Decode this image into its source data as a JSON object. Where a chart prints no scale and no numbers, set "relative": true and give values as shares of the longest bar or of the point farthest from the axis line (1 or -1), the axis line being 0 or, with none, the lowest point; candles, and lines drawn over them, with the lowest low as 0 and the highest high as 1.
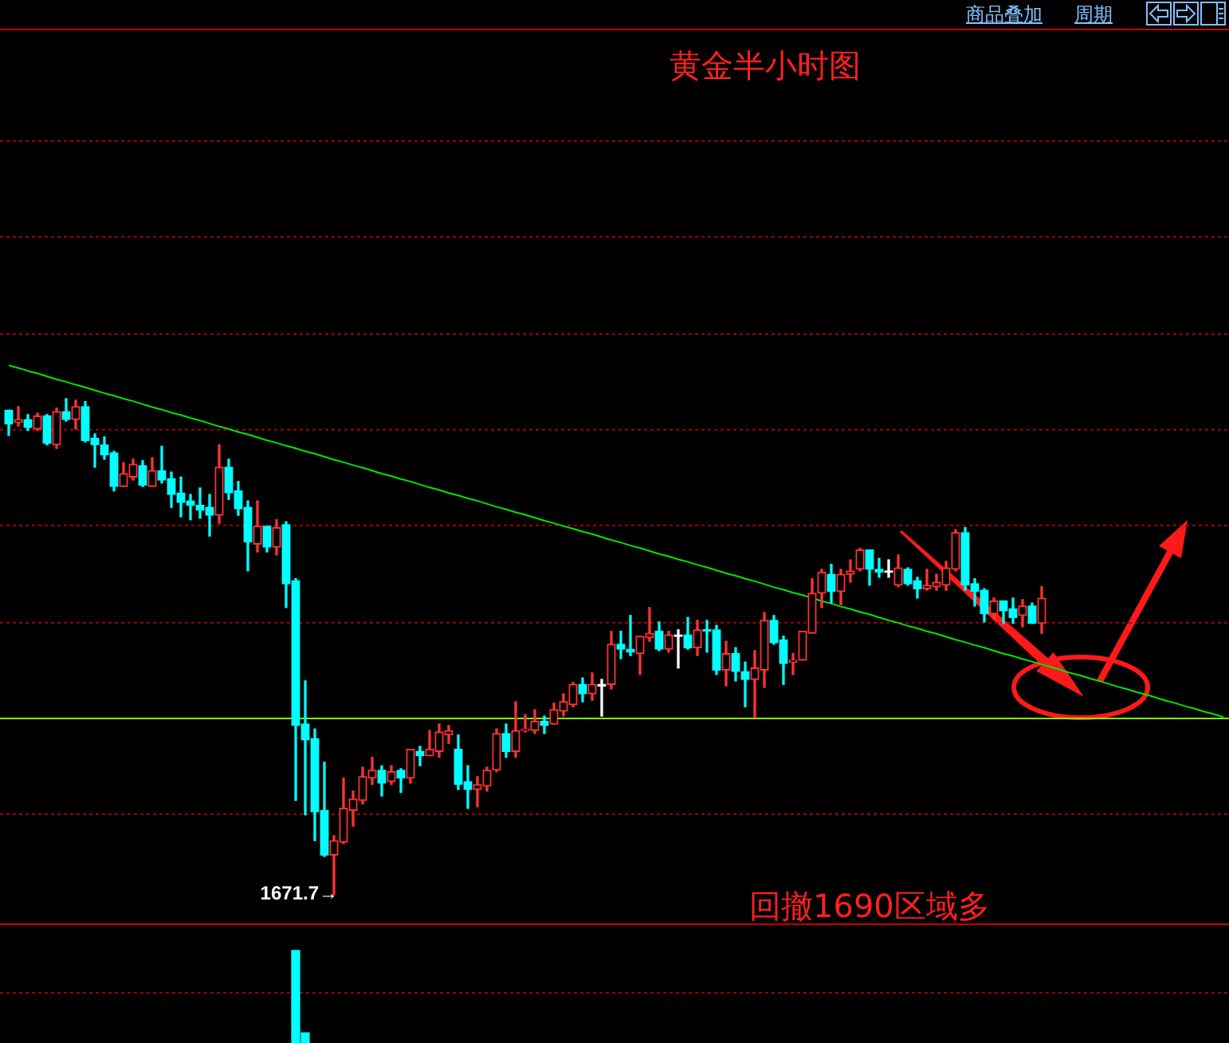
{
  "chart_data": [
    {
      "type": "candlestick",
      "title": "黄金半小时图",
      "relative": true,
      "tick_labels": false,
      "categories": [
        null,
        null,
        null,
        null,
        null,
        null,
        null,
        null,
        null,
        null,
        null,
        null,
        null,
        null,
        null,
        null,
        null,
        null,
        null,
        null,
        null,
        null,
        null,
        null,
        null,
        null,
        null,
        null,
        null,
        null,
        null,
        null,
        null,
        null,
        null,
        null,
        null,
        null,
        null,
        null,
        null,
        null,
        null,
        null,
        null,
        null,
        null,
        null,
        null,
        null,
        null,
        null,
        null,
        null,
        null,
        null,
        null,
        null,
        null,
        null,
        null,
        null,
        null,
        null,
        null,
        null,
        null,
        null,
        null,
        null,
        null,
        null,
        null,
        null,
        null,
        null,
        null,
        null,
        null,
        null,
        null,
        null,
        null,
        null,
        null,
        null,
        null,
        null,
        null,
        null,
        null,
        null,
        null,
        null,
        null,
        null,
        null,
        null,
        null,
        null,
        null,
        null,
        null,
        null,
        null,
        null,
        null,
        null,
        null,
        null,
        null,
        null,
        null,
        null,
        null,
        null,
        null,
        null,
        null,
        null,
        null,
        null,
        null,
        null,
        null,
        null,
        null,
        null
      ],
      "ohlc": [
        [
          0.977,
          0.977,
          0.926,
          0.949
        ],
        [
          0.952,
          0.984,
          0.945,
          0.958
        ],
        [
          0.958,
          0.968,
          0.936,
          0.942
        ],
        [
          0.939,
          0.971,
          0.936,
          0.965
        ],
        [
          0.965,
          0.968,
          0.907,
          0.91
        ],
        [
          0.907,
          0.981,
          0.9,
          0.974
        ],
        [
          0.974,
          1,
          0.955,
          0.958
        ],
        [
          0.958,
          0.997,
          0.939,
          0.984
        ],
        [
          0.984,
          0.994,
          0.913,
          0.916
        ],
        [
          0.92,
          0.929,
          0.862,
          0.907
        ],
        [
          0.907,
          0.923,
          0.878,
          0.887
        ],
        [
          0.891,
          0.894,
          0.814,
          0.823
        ],
        [
          0.823,
          0.871,
          0.823,
          0.849
        ],
        [
          0.842,
          0.878,
          0.836,
          0.868
        ],
        [
          0.865,
          0.875,
          0.823,
          0.826
        ],
        [
          0.823,
          0.881,
          0.823,
          0.855
        ],
        [
          0.855,
          0.904,
          0.83,
          0.836
        ],
        [
          0.839,
          0.852,
          0.781,
          0.807
        ],
        [
          0.81,
          0.842,
          0.762,
          0.791
        ],
        [
          0.794,
          0.807,
          0.756,
          0.785
        ],
        [
          0.785,
          0.82,
          0.759,
          0.775
        ],
        [
          0.781,
          0.807,
          0.723,
          0.765
        ],
        [
          0.765,
          0.907,
          0.749,
          0.862
        ],
        [
          0.862,
          0.878,
          0.797,
          0.81
        ],
        [
          0.814,
          0.833,
          0.765,
          0.778
        ],
        [
          0.781,
          0.794,
          0.653,
          0.711
        ],
        [
          0.707,
          0.794,
          0.691,
          0.743
        ],
        [
          0.743,
          0.743,
          0.691,
          0.701
        ],
        [
          0.701,
          0.756,
          0.685,
          0.74
        ],
        [
          0.746,
          0.752,
          0.579,
          0.627
        ],
        [
          0.633,
          0.637,
          0.19,
          0.341
        ],
        [
          0.344,
          0.431,
          0.161,
          0.312
        ],
        [
          0.315,
          0.334,
          0.109,
          0.167
        ],
        [
          0.17,
          0.267,
          0.077,
          0.08
        ],
        [
          0.08,
          0.119,
          0,
          0.109
        ],
        [
          0.106,
          0.235,
          0.103,
          0.174
        ],
        [
          0.17,
          0.209,
          0.138,
          0.193
        ],
        [
          0.19,
          0.257,
          0.183,
          0.238
        ],
        [
          0.235,
          0.277,
          0.222,
          0.251
        ],
        [
          0.251,
          0.26,
          0.199,
          0.225
        ],
        [
          0.228,
          0.26,
          0.222,
          0.248
        ],
        [
          0.251,
          0.254,
          0.206,
          0.235
        ],
        [
          0.235,
          0.293,
          0.225,
          0.293
        ],
        [
          0.289,
          0.299,
          0.26,
          0.28
        ],
        [
          0.28,
          0.331,
          0.28,
          0.293
        ],
        [
          0.289,
          0.344,
          0.277,
          0.328
        ],
        [
          0.322,
          0.341,
          0.305,
          0.331
        ],
        [
          0.293,
          0.322,
          0.212,
          0.222
        ],
        [
          0.228,
          0.26,
          0.174,
          0.212
        ],
        [
          0.212,
          0.238,
          0.177,
          0.222
        ],
        [
          0.219,
          0.257,
          0.209,
          0.251
        ],
        [
          0.251,
          0.334,
          0.248,
          0.325
        ],
        [
          0.325,
          0.344,
          0.277,
          0.289
        ],
        [
          0.289,
          0.389,
          0.277,
          0.331
        ],
        [
          0.331,
          0.363,
          0.328,
          0.334
        ],
        [
          0.331,
          0.373,
          0.325,
          0.35
        ],
        [
          0.35,
          0.36,
          0.325,
          0.341
        ],
        [
          0.344,
          0.386,
          0.344,
          0.373
        ],
        [
          0.37,
          0.405,
          0.36,
          0.389
        ],
        [
          0.383,
          0.428,
          0.379,
          0.424
        ],
        [
          0.424,
          0.437,
          0.389,
          0.405
        ],
        [
          0.405,
          0.447,
          0.392,
          0.424
        ],
        [
          0.424,
          0.434,
          0.36,
          0.424
        ],
        [
          0.424,
          0.531,
          0.415,
          0.505
        ],
        [
          0.505,
          0.531,
          0.476,
          0.495
        ],
        [
          0.495,
          0.563,
          0.482,
          0.489
        ],
        [
          0.486,
          0.521,
          0.444,
          0.521
        ],
        [
          0.518,
          0.579,
          0.511,
          0.527
        ],
        [
          0.531,
          0.55,
          0.492,
          0.495
        ],
        [
          0.495,
          0.531,
          0.489,
          0.524
        ],
        [
          0.524,
          0.534,
          0.457,
          0.524
        ],
        [
          0.524,
          0.559,
          0.495,
          0.498
        ],
        [
          0.498,
          0.553,
          0.482,
          0.534
        ],
        [
          0.534,
          0.553,
          0.489,
          0.531
        ],
        [
          0.534,
          0.543,
          0.444,
          0.453
        ],
        [
          0.453,
          0.511,
          0.421,
          0.486
        ],
        [
          0.486,
          0.498,
          0.431,
          0.45
        ],
        [
          0.45,
          0.469,
          0.379,
          0.434
        ],
        [
          0.434,
          0.492,
          0.357,
          0.457
        ],
        [
          0.453,
          0.569,
          0.418,
          0.553
        ],
        [
          0.553,
          0.563,
          0.505,
          0.508
        ],
        [
          0.514,
          0.521,
          0.424,
          0.466
        ],
        [
          0.469,
          0.486,
          0.444,
          0.473
        ],
        [
          0.473,
          0.531,
          0.473,
          0.531
        ],
        [
          0.527,
          0.637,
          0.527,
          0.608
        ],
        [
          0.608,
          0.656,
          0.579,
          0.65
        ],
        [
          0.646,
          0.666,
          0.588,
          0.611
        ],
        [
          0.611,
          0.656,
          0.585,
          0.646
        ],
        [
          0.646,
          0.675,
          0.63,
          0.653
        ],
        [
          0.656,
          0.698,
          0.653,
          0.695
        ],
        [
          0.695,
          0.695,
          0.624,
          0.656
        ],
        [
          0.656,
          0.678,
          0.64,
          0.65
        ],
        [
          0.653,
          0.675,
          0.64,
          0.653
        ],
        [
          0.624,
          0.685,
          0.621,
          0.659
        ],
        [
          0.656,
          0.659,
          0.624,
          0.627
        ],
        [
          0.633,
          0.64,
          0.598,
          0.617
        ],
        [
          0.617,
          0.656,
          0.614,
          0.624
        ],
        [
          0.621,
          0.646,
          0.614,
          0.63
        ],
        [
          0.624,
          0.672,
          0.614,
          0.659
        ],
        [
          0.656,
          0.736,
          0.653,
          0.73
        ],
        [
          0.73,
          0.74,
          0.614,
          0.624
        ],
        [
          0.627,
          0.637,
          0.582,
          0.611
        ],
        [
          0.614,
          0.617,
          0.55,
          0.566
        ],
        [
          0.566,
          0.598,
          0.556,
          0.592
        ],
        [
          0.592,
          0.592,
          0.547,
          0.572
        ],
        [
          0.576,
          0.598,
          0.547,
          0.559
        ],
        [
          0.563,
          0.595,
          0.54,
          0.582
        ],
        [
          0.582,
          0.588,
          0.547,
          0.547
        ],
        [
          0.547,
          0.621,
          0.527,
          0.598
        ],
        null,
        null,
        null,
        null,
        null,
        null,
        null,
        null,
        null,
        null,
        null,
        null,
        null,
        null,
        null,
        null,
        null,
        null,
        null
      ],
      "colors": [
        "#00ffff",
        "#ff3232",
        "#00ffff",
        "#ff3232",
        "#00ffff",
        "#ff3232",
        "#00ffff",
        "#ff3232",
        "#00ffff",
        "#00ffff",
        "#00ffff",
        "#00ffff",
        "#ff3232",
        "#ff3232",
        "#00ffff",
        "#ff3232",
        "#00ffff",
        "#00ffff",
        "#00ffff",
        "#00ffff",
        "#00ffff",
        "#00ffff",
        "#ff3232",
        "#00ffff",
        "#00ffff",
        "#00ffff",
        "#ff3232",
        "#00ffff",
        "#ff3232",
        "#00ffff",
        "#00ffff",
        "#00ffff",
        "#00ffff",
        "#00ffff",
        "#ff3232",
        "#ff3232",
        "#ff3232",
        "#ff3232",
        "#ff3232",
        "#00ffff",
        "#ff3232",
        "#00ffff",
        "#ff3232",
        "#00ffff",
        "#ff3232",
        "#ff3232",
        "#ff3232",
        "#00ffff",
        "#00ffff",
        "#ff3232",
        "#ff3232",
        "#ff3232",
        "#00ffff",
        "#ff3232",
        "#ff3232",
        "#ff3232",
        "#00ffff",
        "#ff3232",
        "#ff3232",
        "#ff3232",
        "#00ffff",
        "#ff3232",
        "#ffffff",
        "#ff3232",
        "#00ffff",
        "#00ffff",
        "#ff3232",
        "#ff3232",
        "#00ffff",
        "#ff3232",
        "#ffffff",
        "#00ffff",
        "#ff3232",
        "#00ffff",
        "#00ffff",
        "#ff3232",
        "#00ffff",
        "#00ffff",
        "#ff3232",
        "#ff3232",
        "#00ffff",
        "#00ffff",
        "#ff3232",
        "#ff3232",
        "#ff3232",
        "#ff3232",
        "#00ffff",
        "#ff3232",
        "#ff3232",
        "#ff3232",
        "#00ffff",
        "#00ffff",
        "#ffffff",
        "#ff3232",
        "#00ffff",
        "#00ffff",
        "#ff3232",
        "#ff3232",
        "#ff3232",
        "#ff3232",
        "#00ffff",
        "#00ffff",
        "#00ffff",
        "#ff3232",
        "#00ffff",
        "#00ffff",
        "#ff3232",
        "#00ffff",
        "#ff3232",
        null,
        null,
        null,
        null,
        null,
        null,
        null,
        null,
        null,
        null,
        null,
        null,
        null,
        null,
        null,
        null,
        null,
        null,
        null
      ],
      "series": [
        {
          "type": "line",
          "color": "#00e600",
          "values": [
            1.067,
            1.062,
            1.056,
            1.051,
            1.045,
            1.039,
            1.034,
            1.028,
            1.023,
            1.017,
            1.011,
            1.006,
            1,
            0.995,
            0.989,
            0.983,
            0.978,
            0.972,
            0.967,
            0.961,
            0.956,
            0.95,
            0.944,
            0.939,
            0.933,
            0.928,
            0.922,
            0.916,
            0.911,
            0.905,
            0.9,
            0.894,
            0.889,
            0.883,
            0.877,
            0.872,
            0.866,
            0.861,
            0.855,
            0.849,
            0.844,
            0.838,
            0.833,
            0.827,
            0.821,
            0.816,
            0.81,
            0.805,
            0.799,
            0.794,
            0.788,
            0.782,
            0.777,
            0.771,
            0.766,
            0.76,
            0.754,
            0.749,
            0.743,
            0.738,
            0.732,
            0.727,
            0.721,
            0.715,
            0.71,
            0.704,
            0.699,
            0.693,
            0.687,
            0.682,
            0.676,
            0.671,
            0.665,
            0.66,
            0.654,
            0.648,
            0.643,
            0.637,
            0.632,
            0.626,
            0.62,
            0.615,
            0.609,
            0.604,
            0.598,
            0.592,
            0.587,
            0.581,
            0.576,
            0.57,
            0.565,
            0.559,
            0.553,
            0.548,
            0.542,
            0.537,
            0.531,
            0.526,
            0.52,
            0.514,
            0.509,
            0.503,
            0.498,
            0.492,
            0.486,
            0.481,
            0.475,
            0.47,
            0.464,
            0.459,
            0.453,
            0.447,
            0.442,
            0.436,
            0.431,
            0.425,
            0.419,
            0.414,
            0.408,
            0.403,
            0.397,
            0.391,
            0.386,
            0.38,
            0.375,
            0.369,
            0.364,
            0.358
          ]
        }
      ],
      "ref_lines": [
        {
          "axis": "y",
          "value": 1.521,
          "color": "#a00000",
          "line_style": "dotted"
        },
        {
          "axis": "y",
          "value": 1.327,
          "color": "#a00000",
          "line_style": "dotted"
        },
        {
          "axis": "y",
          "value": 1.133,
          "color": "#a00000",
          "line_style": "dotted"
        },
        {
          "axis": "y",
          "value": 0.939,
          "color": "#a00000",
          "line_style": "dotted"
        },
        {
          "axis": "y",
          "value": 0.745,
          "color": "#a00000",
          "line_style": "dotted"
        },
        {
          "axis": "y",
          "value": 0.551,
          "color": "#a00000",
          "line_style": "dotted"
        },
        {
          "axis": "y",
          "value": 0.164,
          "color": "#a00000",
          "line_style": "dotted"
        },
        {
          "axis": "y",
          "value": 0.356,
          "color": "#7fff00"
        }
      ],
      "annotations": [
        "1671.7→",
        "回撤1690区域多",
        "商品叠加",
        "周期"
      ]
    },
    {
      "type": "bar",
      "relative": true,
      "tick_labels": false,
      "color": "#00ffff",
      "categories": [
        null,
        null,
        null,
        null,
        null,
        null,
        null,
        null,
        null,
        null,
        null,
        null,
        null,
        null,
        null,
        null,
        null,
        null,
        null,
        null,
        null,
        null,
        null,
        null,
        null,
        null,
        null,
        null,
        null,
        null,
        null,
        null,
        null,
        null,
        null,
        null,
        null,
        null,
        null,
        null,
        null,
        null,
        null,
        null,
        null,
        null,
        null,
        null,
        null,
        null,
        null,
        null,
        null,
        null,
        null,
        null,
        null,
        null,
        null,
        null,
        null,
        null,
        null,
        null,
        null,
        null,
        null,
        null,
        null,
        null,
        null,
        null,
        null,
        null,
        null,
        null,
        null,
        null,
        null,
        null,
        null,
        null,
        null,
        null,
        null,
        null,
        null,
        null,
        null,
        null,
        null,
        null,
        null,
        null,
        null,
        null,
        null,
        null,
        null,
        null,
        null,
        null,
        null,
        null,
        null,
        null,
        null,
        null,
        null,
        null,
        null,
        null,
        null,
        null,
        null,
        null,
        null,
        null,
        null,
        null,
        null,
        null,
        null,
        null,
        null,
        null,
        null,
        null
      ],
      "values": [
        null,
        null,
        null,
        null,
        null,
        null,
        null,
        null,
        null,
        null,
        null,
        null,
        null,
        null,
        null,
        null,
        null,
        null,
        null,
        null,
        null,
        null,
        null,
        null,
        null,
        null,
        null,
        null,
        null,
        null,
        1,
        0.11,
        null,
        null,
        null,
        null,
        null,
        null,
        null,
        null,
        null,
        null,
        null,
        null,
        null,
        null,
        null,
        null,
        null,
        null,
        null,
        null,
        null,
        null,
        null,
        null,
        null,
        null,
        null,
        null,
        null,
        null,
        null,
        null,
        null,
        null,
        null,
        null,
        null,
        null,
        null,
        null,
        null,
        null,
        null,
        null,
        null,
        null,
        null,
        null,
        null,
        null,
        null,
        null,
        null,
        null,
        null,
        null,
        null,
        null,
        null,
        null,
        null,
        null,
        null,
        null,
        null,
        null,
        null,
        null,
        null,
        null,
        null,
        null,
        null,
        null,
        null,
        null,
        null,
        null,
        null,
        null,
        null,
        null,
        null,
        null,
        null,
        null,
        null,
        null,
        null,
        null,
        null,
        null,
        null,
        null,
        null,
        null
      ],
      "ref_lines": [
        {
          "axis": "y",
          "value": 0.552,
          "color": "#a00000",
          "line_style": "dotted"
        }
      ]
    }
  ]
}
